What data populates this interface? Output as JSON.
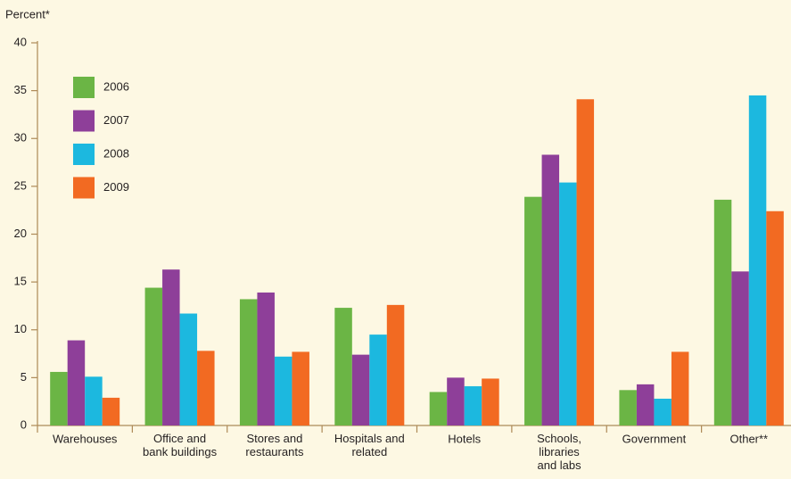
{
  "chart_data": {
    "type": "bar",
    "y_label": "Percent*",
    "categories": [
      "Warehouses",
      "Office and\nbank buildings",
      "Stores and\nrestaurants",
      "Hospitals and\nrelated",
      "Hotels",
      "Schools,\nlibraries\nand labs",
      "Government",
      "Other**"
    ],
    "series": [
      {
        "name": "2006",
        "color": "#6bb545",
        "values": [
          5.6,
          14.4,
          13.2,
          12.3,
          3.5,
          23.9,
          3.7,
          23.6
        ]
      },
      {
        "name": "2007",
        "color": "#8e3f99",
        "values": [
          8.9,
          16.3,
          13.9,
          7.4,
          5.0,
          28.3,
          4.3,
          16.1
        ]
      },
      {
        "name": "2008",
        "color": "#1cb8df",
        "values": [
          5.1,
          11.7,
          7.2,
          9.5,
          4.1,
          25.4,
          2.8,
          34.5
        ]
      },
      {
        "name": "2009",
        "color": "#f26a22",
        "values": [
          2.9,
          7.8,
          7.7,
          12.6,
          4.9,
          34.1,
          7.7,
          22.4
        ]
      }
    ],
    "ylim": [
      0,
      40
    ],
    "yticks": [
      0,
      5,
      10,
      15,
      20,
      25,
      30,
      35,
      40
    ],
    "legend": "top-left"
  }
}
